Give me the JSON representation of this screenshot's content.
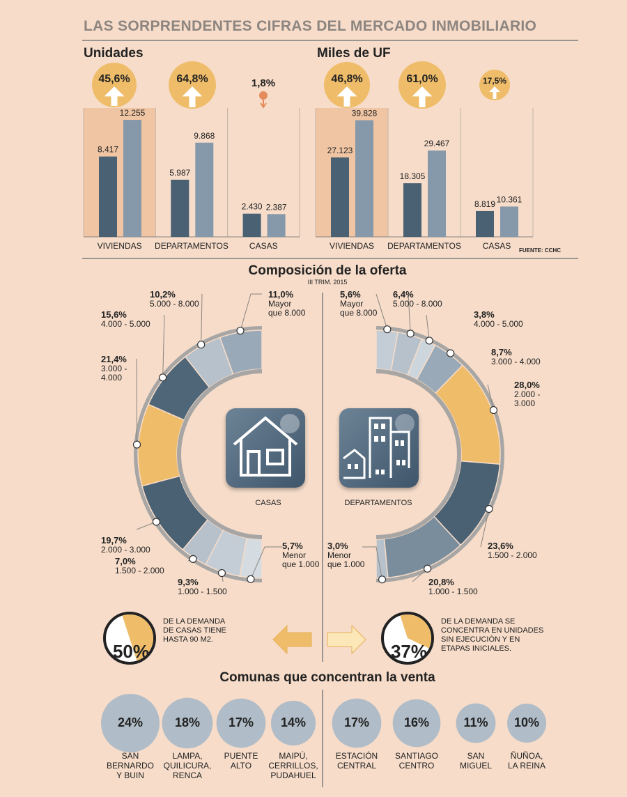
{
  "title": "LAS SORPRENDENTES CIFRAS DEL MERCADO INMOBILIARIO",
  "source": "FUENTE: CCHC",
  "colors": {
    "bg": "#f6dcc9",
    "bar_dark": "#4a6174",
    "bar_light": "#8699aa",
    "highlight": "#f0c5a3",
    "gold": "#efbd6a",
    "arrow": "#ffffff",
    "gray_line": "#9a9590"
  },
  "chart_data": [
    {
      "type": "bar",
      "title": "Unidades",
      "categories": [
        "VIVIENDAS",
        "DEPARTAMENTOS",
        "CASAS"
      ],
      "series": [
        {
          "values": [
            8417,
            5987,
            2430
          ]
        },
        {
          "values": [
            12255,
            9868,
            2387
          ]
        }
      ],
      "value_labels": [
        [
          "8.417",
          "12.255"
        ],
        [
          "5.987",
          "9.868"
        ],
        [
          "2.430",
          "2.387"
        ]
      ],
      "changes": [
        {
          "label": "45,6%",
          "direction": "up"
        },
        {
          "label": "64,8%",
          "direction": "up"
        },
        {
          "label": "1,8%",
          "direction": "down"
        }
      ],
      "ylim": [
        0,
        13500
      ]
    },
    {
      "type": "bar",
      "title": "Miles de UF",
      "categories": [
        "VIVIENDAS",
        "DEPARTAMENTOS",
        "CASAS"
      ],
      "series": [
        {
          "values": [
            27123,
            18305,
            8819
          ]
        },
        {
          "values": [
            39828,
            29467,
            10361
          ]
        }
      ],
      "value_labels": [
        [
          "27.123",
          "39.828"
        ],
        [
          "18.305",
          "29.467"
        ],
        [
          "8.819",
          "10.361"
        ]
      ],
      "changes": [
        {
          "label": "46,8%",
          "direction": "up"
        },
        {
          "label": "61,0%",
          "direction": "up"
        },
        {
          "label": "17,5%",
          "direction": "up"
        }
      ],
      "ylim": [
        0,
        44000
      ]
    },
    {
      "type": "pie",
      "title": "Composición de la oferta",
      "subtitle": "III TRIM. 2015",
      "center_label": "CASAS",
      "slices": [
        {
          "pct": "11,0%",
          "range": [
            "Mayor",
            "que 8.000"
          ],
          "value": 11.0
        },
        {
          "pct": "10,2%",
          "range": [
            "5.000 - 8.000"
          ],
          "value": 10.2
        },
        {
          "pct": "15,6%",
          "range": [
            "4.000 - 5.000"
          ],
          "value": 15.6
        },
        {
          "pct": "21,4%",
          "range": [
            "3.000 -",
            "4.000"
          ],
          "value": 21.4
        },
        {
          "pct": "19,7%",
          "range": [
            "2.000 - 3.000"
          ],
          "value": 19.7
        },
        {
          "pct": "7,0%",
          "range": [
            "1.500 - 2.000"
          ],
          "value": 7.0
        },
        {
          "pct": "9,3%",
          "range": [
            "1.000 - 1.500"
          ],
          "value": 9.3
        },
        {
          "pct": "5,7%",
          "range": [
            "Menor",
            "que 1.000"
          ],
          "value": 5.7
        }
      ]
    },
    {
      "type": "pie",
      "center_label": "DEPARTAMENTOS",
      "slices": [
        {
          "pct": "5,6%",
          "range": [
            "Mayor",
            "que 8.000"
          ],
          "value": 5.6
        },
        {
          "pct": "6,4%",
          "range": [
            "5.000 - 8.000"
          ],
          "value": 6.4
        },
        {
          "pct": "3,8%",
          "range": [
            "4.000 - 5.000"
          ],
          "value": 3.8
        },
        {
          "pct": "8,7%",
          "range": [
            "3.000 - 4.000"
          ],
          "value": 8.7
        },
        {
          "pct": "28,0%",
          "range": [
            "2.000 -",
            "3.000"
          ],
          "value": 28.0
        },
        {
          "pct": "23,6%",
          "range": [
            "1.500 - 2.000"
          ],
          "value": 23.6
        },
        {
          "pct": "20,8%",
          "range": [
            "1.000 - 1.500"
          ],
          "value": 20.8
        },
        {
          "pct": "3,0%",
          "range": [
            "Menor",
            "que 1.000"
          ],
          "value": 3.0
        }
      ]
    },
    {
      "type": "pie",
      "values": [
        50
      ],
      "label": "50%",
      "text": [
        "DE LA DEMANDA",
        "DE CASAS TIENE",
        "HASTA 90 M2."
      ]
    },
    {
      "type": "pie",
      "values": [
        37
      ],
      "label": "37%",
      "text": [
        "DE LA DEMANDA SE",
        "CONCENTRA EN UNIDADES",
        "SIN EJECUCIÓN Y EN",
        "ETAPAS INICIALES."
      ]
    },
    {
      "type": "bar",
      "title": "Comunas que concentran la venta",
      "categories": [
        [
          "SAN",
          "BERNARDO",
          "Y BUIN"
        ],
        [
          "LAMPA,",
          "QUILICURA,",
          "RENCA"
        ],
        [
          "PUENTE",
          "ALTO"
        ],
        [
          "MAIPÚ,",
          "CERRILLOS,",
          "PUDAHUEL"
        ],
        [
          "ESTACIÓN",
          "CENTRAL"
        ],
        [
          "SANTIAGO",
          "CENTRO"
        ],
        [
          "SAN",
          "MIGUEL"
        ],
        [
          "ÑUÑOA,",
          "LA REINA"
        ]
      ],
      "values": [
        24,
        18,
        17,
        14,
        17,
        16,
        11,
        10
      ],
      "value_labels": [
        "24%",
        "18%",
        "17%",
        "14%",
        "17%",
        "16%",
        "11%",
        "10%"
      ]
    }
  ]
}
